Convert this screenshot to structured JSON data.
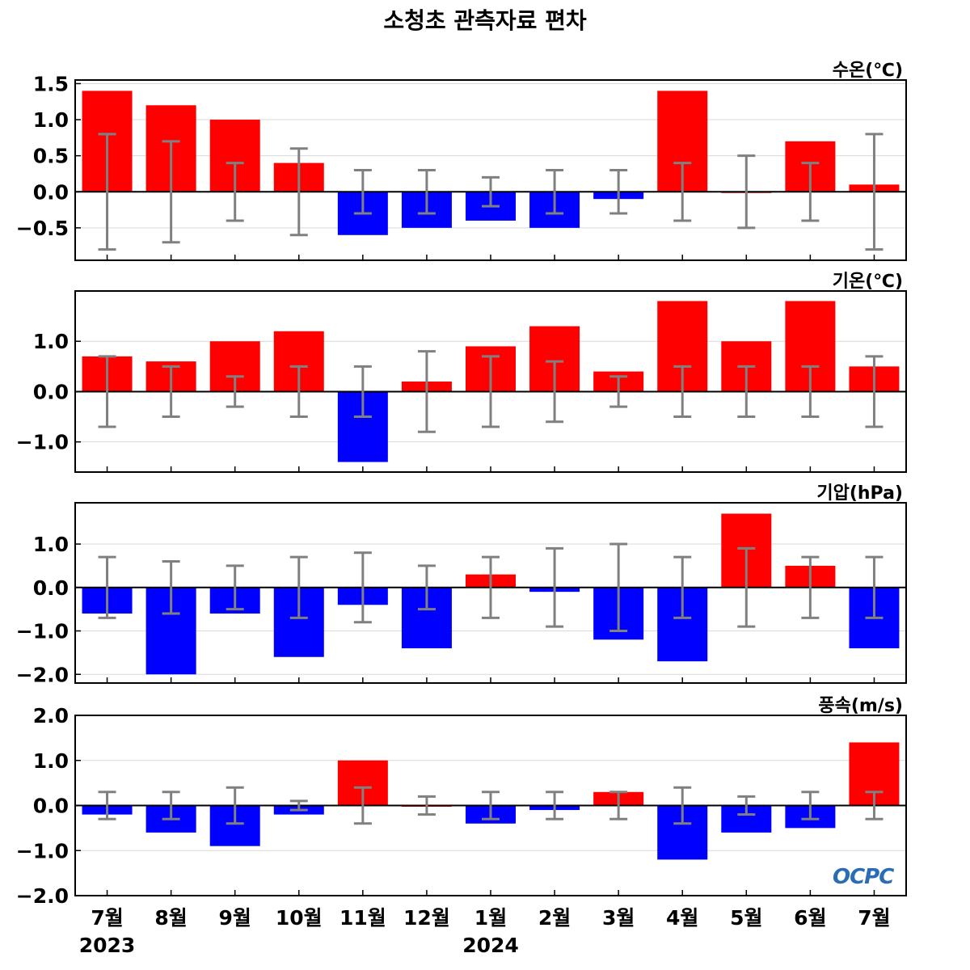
{
  "title": "소청초 관측자료 편차",
  "logo_text": "OCPC",
  "colors": {
    "positive": "#ff0000",
    "negative": "#0000ff",
    "errorbar": "#808080",
    "grid": "#d9d9d9",
    "axis": "#000000"
  },
  "months": [
    "7월",
    "8월",
    "9월",
    "10월",
    "11월",
    "12월",
    "1월",
    "2월",
    "3월",
    "4월",
    "5월",
    "6월",
    "7월"
  ],
  "years": [
    {
      "label": "2023",
      "at_index": 0
    },
    {
      "label": "2024",
      "at_index": 6
    }
  ],
  "chart_data": [
    {
      "type": "bar",
      "unit_label": "수온(℃)",
      "categories": [
        "7월",
        "8월",
        "9월",
        "10월",
        "11월",
        "12월",
        "1월",
        "2월",
        "3월",
        "4월",
        "5월",
        "6월",
        "7월"
      ],
      "values": [
        1.4,
        1.2,
        1.0,
        0.4,
        -0.6,
        -0.5,
        -0.4,
        -0.5,
        -0.1,
        1.4,
        0.0,
        0.7,
        0.1
      ],
      "error_low": [
        -0.8,
        -0.7,
        -0.4,
        -0.6,
        -0.3,
        -0.3,
        -0.2,
        -0.3,
        -0.3,
        -0.4,
        -0.5,
        -0.4,
        -0.8
      ],
      "error_high": [
        0.8,
        0.7,
        0.4,
        0.6,
        0.3,
        0.3,
        0.2,
        0.3,
        0.3,
        0.4,
        0.5,
        0.4,
        0.8
      ],
      "ylim": [
        -0.95,
        1.55
      ],
      "yticks": [
        1.5,
        1.0,
        0.5,
        0.0,
        -0.5
      ],
      "ytick_labels": [
        "1.5",
        "1.0",
        "0.5",
        "0.0",
        "−0.5"
      ]
    },
    {
      "type": "bar",
      "unit_label": "기온(℃)",
      "categories": [
        "7월",
        "8월",
        "9월",
        "10월",
        "11월",
        "12월",
        "1월",
        "2월",
        "3월",
        "4월",
        "5월",
        "6월",
        "7월"
      ],
      "values": [
        0.7,
        0.6,
        1.0,
        1.2,
        -1.4,
        0.2,
        0.9,
        1.3,
        0.4,
        1.8,
        1.0,
        1.8,
        0.5
      ],
      "error_low": [
        -0.7,
        -0.5,
        -0.3,
        -0.5,
        -0.5,
        -0.8,
        -0.7,
        -0.6,
        -0.3,
        -0.5,
        -0.5,
        -0.5,
        -0.7
      ],
      "error_high": [
        0.7,
        0.5,
        0.3,
        0.5,
        0.5,
        0.8,
        0.7,
        0.6,
        0.3,
        0.5,
        0.5,
        0.5,
        0.7
      ],
      "ylim": [
        -1.6,
        2.0
      ],
      "yticks": [
        1.0,
        0.0,
        -1.0
      ],
      "ytick_labels": [
        "1.0",
        "0.0",
        "−1.0"
      ]
    },
    {
      "type": "bar",
      "unit_label": "기압(hPa)",
      "categories": [
        "7월",
        "8월",
        "9월",
        "10월",
        "11월",
        "12월",
        "1월",
        "2월",
        "3월",
        "4월",
        "5월",
        "6월",
        "7월"
      ],
      "values": [
        -0.6,
        -2.0,
        -0.6,
        -1.6,
        -0.4,
        -1.4,
        0.3,
        -0.1,
        -1.2,
        -1.7,
        1.7,
        0.5,
        -1.4
      ],
      "error_low": [
        -0.7,
        -0.6,
        -0.5,
        -0.7,
        -0.8,
        -0.5,
        -0.7,
        -0.9,
        -1.0,
        -0.7,
        -0.9,
        -0.7,
        -0.7
      ],
      "error_high": [
        0.7,
        0.6,
        0.5,
        0.7,
        0.8,
        0.5,
        0.7,
        0.9,
        1.0,
        0.7,
        0.9,
        0.7,
        0.7
      ],
      "ylim": [
        -2.2,
        1.95
      ],
      "yticks": [
        1.0,
        0.0,
        -1.0,
        -2.0
      ],
      "ytick_labels": [
        "1.0",
        "0.0",
        "−1.0",
        "−2.0"
      ]
    },
    {
      "type": "bar",
      "unit_label": "풍속(m/s)",
      "categories": [
        "7월",
        "8월",
        "9월",
        "10월",
        "11월",
        "12월",
        "1월",
        "2월",
        "3월",
        "4월",
        "5월",
        "6월",
        "7월"
      ],
      "values": [
        -0.2,
        -0.6,
        -0.9,
        -0.2,
        1.0,
        0.0,
        -0.4,
        -0.1,
        0.3,
        -1.2,
        -0.6,
        -0.5,
        1.4
      ],
      "error_low": [
        -0.3,
        -0.3,
        -0.4,
        -0.1,
        -0.4,
        -0.2,
        -0.3,
        -0.3,
        -0.3,
        -0.4,
        -0.2,
        -0.3,
        -0.3
      ],
      "error_high": [
        0.3,
        0.3,
        0.4,
        0.1,
        0.4,
        0.2,
        0.3,
        0.3,
        0.3,
        0.4,
        0.2,
        0.3,
        0.3
      ],
      "ylim": [
        -2.0,
        2.0
      ],
      "yticks": [
        2.0,
        1.0,
        0.0,
        -1.0,
        -2.0
      ],
      "ytick_labels": [
        "2.0",
        "1.0",
        "0.0",
        "−1.0",
        "−2.0"
      ]
    }
  ]
}
